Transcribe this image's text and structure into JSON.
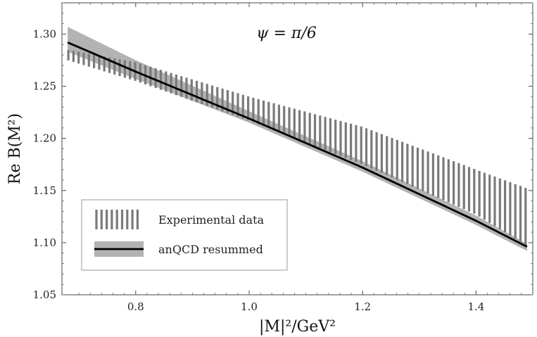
{
  "chart_data": {
    "type": "line",
    "title": "",
    "annotation": "ψ = π/6",
    "xlabel": "|M|²/GeV²",
    "ylabel": "Re B(M²)",
    "xlim": [
      0.67,
      1.5
    ],
    "ylim": [
      1.05,
      1.33
    ],
    "xticks": [
      0.8,
      1.0,
      1.2,
      1.4
    ],
    "xtick_labels": [
      "0.8",
      "1.0",
      "1.2",
      "1.4"
    ],
    "yticks": [
      1.05,
      1.1,
      1.15,
      1.2,
      1.25,
      1.3
    ],
    "ytick_labels": [
      "1.05",
      "1.10",
      "1.15",
      "1.20",
      "1.25",
      "1.30"
    ],
    "grid": false,
    "legend_position": "bottom-left",
    "series": [
      {
        "name": "Experimental data",
        "style": "vertical-hatched band",
        "color": "#7a7a7a",
        "x": [
          0.68,
          0.8,
          1.0,
          1.2,
          1.4,
          1.49
        ],
        "upper": [
          1.285,
          1.273,
          1.24,
          1.211,
          1.17,
          1.152
        ],
        "lower": [
          1.275,
          1.255,
          1.217,
          1.175,
          1.127,
          1.097
        ]
      },
      {
        "name": "anQCD resummed",
        "style": "line with uncertainty band",
        "color": "#000000",
        "band_color": "#b3b3b3",
        "x": [
          0.68,
          0.8,
          1.0,
          1.2,
          1.4,
          1.49
        ],
        "values": [
          1.292,
          1.264,
          1.219,
          1.172,
          1.121,
          1.096
        ],
        "band_upper": [
          1.307,
          1.275,
          1.226,
          1.178,
          1.126,
          1.099
        ],
        "band_lower": [
          1.283,
          1.257,
          1.215,
          1.168,
          1.117,
          1.092
        ]
      }
    ]
  }
}
